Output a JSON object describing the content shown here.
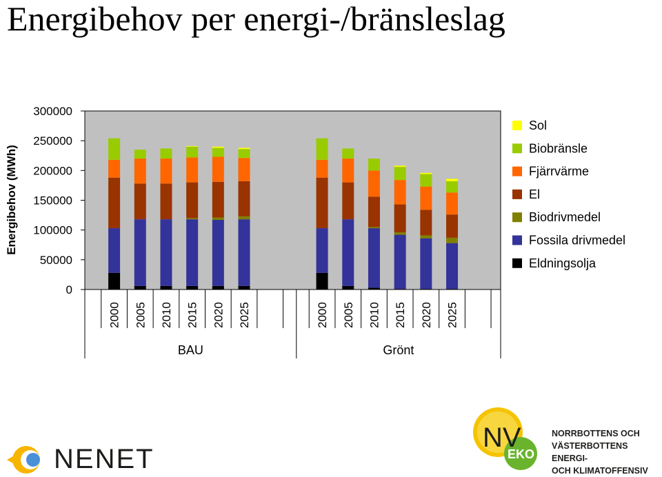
{
  "title": "Energibehov per energi-/bränsleslag",
  "chart_data": {
    "type": "bar",
    "stacked": true,
    "ylabel": "Energibehov (MWh)",
    "ylim": [
      0,
      300000
    ],
    "yticks": [
      "0",
      "50000",
      "100000",
      "150000",
      "200000",
      "250000",
      "300000"
    ],
    "grid": false,
    "legend_position": "right",
    "groups": [
      {
        "name": "BAU",
        "categories": [
          "2000",
          "2005",
          "2010",
          "2015",
          "2020",
          "2025"
        ]
      },
      {
        "name": "Grönt",
        "categories": [
          "2000",
          "2005",
          "2010",
          "2015",
          "2020",
          "2025"
        ]
      }
    ],
    "series": [
      {
        "name": "Eldningsolja",
        "color": "#000000",
        "values": [
          28000,
          6000,
          6000,
          6000,
          6000,
          6000,
          28000,
          6000,
          3000,
          1000,
          1000,
          1000
        ]
      },
      {
        "name": "Fossila drivmedel",
        "color": "#33339a",
        "values": [
          75000,
          112000,
          112000,
          112000,
          111000,
          112000,
          75000,
          112000,
          100000,
          91000,
          85000,
          77000
        ]
      },
      {
        "name": "Biodrivmedel",
        "color": "#808000",
        "values": [
          0,
          0,
          0,
          2000,
          4000,
          5000,
          0,
          0,
          2000,
          4000,
          5000,
          9000
        ]
      },
      {
        "name": "El",
        "color": "#993300",
        "values": [
          85000,
          60000,
          60000,
          60000,
          60000,
          59000,
          85000,
          62000,
          51000,
          47000,
          43000,
          39000
        ]
      },
      {
        "name": "Fjärrvärme",
        "color": "#ff6600",
        "values": [
          30000,
          42000,
          42000,
          42000,
          42000,
          39000,
          30000,
          40000,
          44000,
          41000,
          39000,
          37000
        ]
      },
      {
        "name": "Biobränsle",
        "color": "#99cc00",
        "values": [
          36000,
          15000,
          17000,
          18000,
          15000,
          15000,
          36000,
          17000,
          20000,
          22000,
          21000,
          19000
        ]
      },
      {
        "name": "Sol",
        "color": "#ffff00",
        "values": [
          0,
          0,
          0,
          1000,
          2000,
          2000,
          0,
          0,
          0,
          2000,
          2000,
          4000
        ]
      }
    ],
    "legend_order": [
      "Sol",
      "Biobränsle",
      "Fjärrvärme",
      "El",
      "Biodrivmedel",
      "Fossila drivmedel",
      "Eldningsolja"
    ]
  },
  "logos": {
    "nenet": {
      "text": "NENET",
      "sun_colors": [
        "#f7b500",
        "#4a90d9"
      ]
    },
    "nv_eko": {
      "nv": "NV",
      "eko": "EKO",
      "sun_color": "#f5c400",
      "badge_color": "#6ab42d"
    },
    "klimatoffensiv": {
      "lines": [
        "NORRBOTTENS OCH",
        "VÄSTERBOTTENS ENERGI-",
        "OCH KLIMATOFFENSIV"
      ]
    }
  }
}
